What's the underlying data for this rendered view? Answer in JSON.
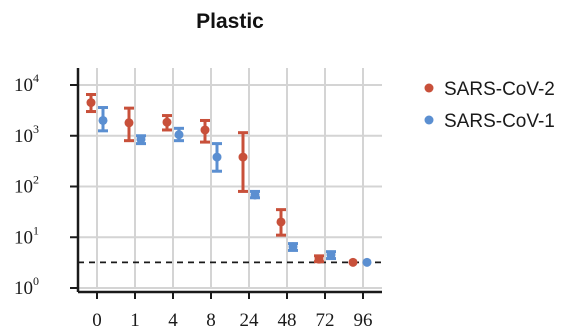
{
  "chart_data": {
    "type": "scatter",
    "title": "Plastic",
    "xlabel": "",
    "ylabel": "",
    "categories": [
      "0",
      "1",
      "4",
      "8",
      "24",
      "48",
      "72",
      "96"
    ],
    "y_scale": "log",
    "ylim": [
      1,
      10000
    ],
    "y_ticks": [
      {
        "base": "10",
        "exp": "0",
        "value": 1
      },
      {
        "base": "10",
        "exp": "1",
        "value": 10
      },
      {
        "base": "10",
        "exp": "2",
        "value": 100
      },
      {
        "base": "10",
        "exp": "3",
        "value": 1000
      },
      {
        "base": "10",
        "exp": "4",
        "value": 10000
      }
    ],
    "grid": true,
    "detection_limit": 3.2,
    "legend_position": "right",
    "series": [
      {
        "name": "SARS-CoV-2",
        "color": "#c8503a",
        "points": [
          {
            "x": "0",
            "y": 4500,
            "low": 3000,
            "high": 6500
          },
          {
            "x": "1",
            "y": 1800,
            "low": 800,
            "high": 3500
          },
          {
            "x": "4",
            "y": 1850,
            "low": 1300,
            "high": 2500
          },
          {
            "x": "8",
            "y": 1300,
            "low": 750,
            "high": 2000
          },
          {
            "x": "24",
            "y": 380,
            "low": 80,
            "high": 1150
          },
          {
            "x": "48",
            "y": 20,
            "low": 11,
            "high": 35
          },
          {
            "x": "72",
            "y": 3.7,
            "low": 3.3,
            "high": 4.3
          },
          {
            "x": "96",
            "y": 3.2,
            "low": 3.2,
            "high": 3.2
          }
        ]
      },
      {
        "name": "SARS-CoV-1",
        "color": "#5b8fd1",
        "points": [
          {
            "x": "0",
            "y": 2000,
            "low": 1250,
            "high": 3600
          },
          {
            "x": "1",
            "y": 850,
            "low": 700,
            "high": 1000
          },
          {
            "x": "4",
            "y": 1050,
            "low": 800,
            "high": 1400
          },
          {
            "x": "8",
            "y": 380,
            "low": 200,
            "high": 700
          },
          {
            "x": "24",
            "y": 68,
            "low": 60,
            "high": 80
          },
          {
            "x": "48",
            "y": 6.5,
            "low": 5.5,
            "high": 7.5
          },
          {
            "x": "72",
            "y": 4.5,
            "low": 3.8,
            "high": 5.2
          },
          {
            "x": "96",
            "y": 3.2,
            "low": 3.2,
            "high": 3.2
          }
        ]
      }
    ]
  }
}
